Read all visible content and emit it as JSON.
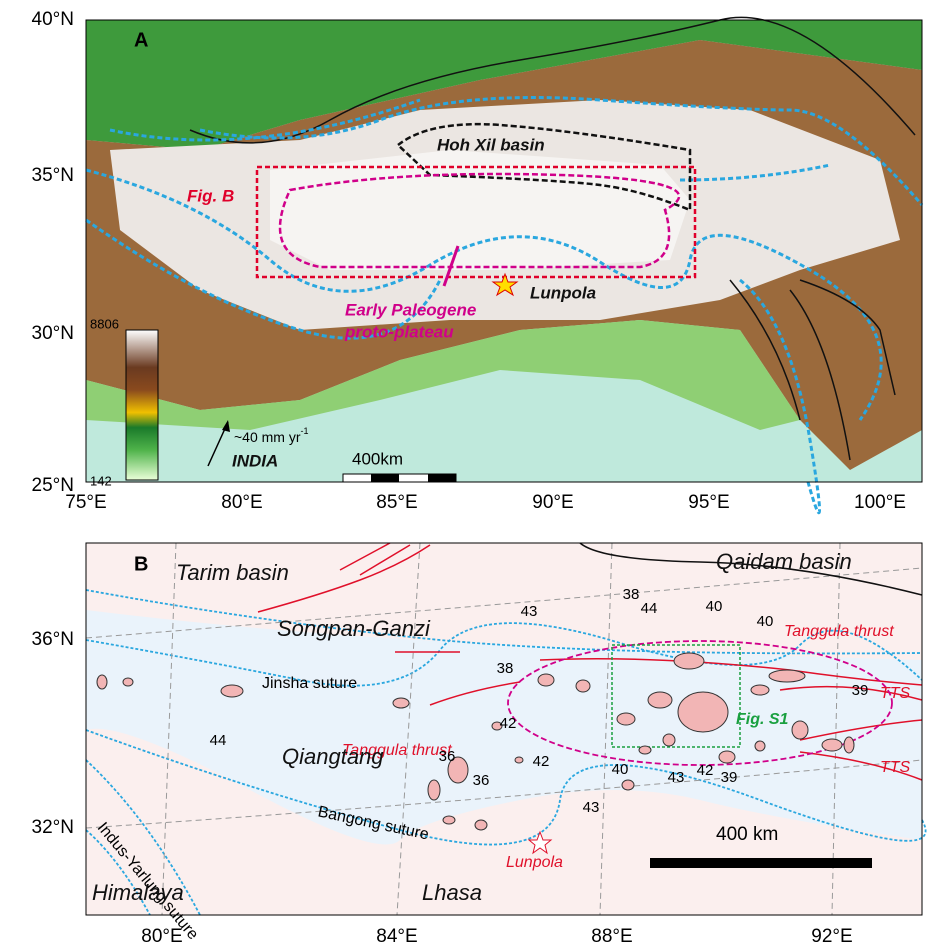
{
  "panel_a": {
    "label": "A",
    "lat_ticks": [
      "40°N",
      "35°N",
      "30°N",
      "25°N"
    ],
    "lon_ticks": [
      "75°E",
      "80°E",
      "85°E",
      "90°E",
      "95°E",
      "100°E"
    ],
    "hoh_xil": "Hoh Xil basin",
    "fig_b": "Fig. B",
    "proto_plateau": [
      "Early Paleogene",
      "proto-plateau"
    ],
    "lunpola": "Lunpola",
    "elevation_max": "8806",
    "elevation_min": "142",
    "velocity": "~40 mm yr",
    "velocity_exp": "-1",
    "india": "INDIA",
    "scale": "400km"
  },
  "panel_b": {
    "label": "B",
    "lat_ticks": [
      "36°N",
      "32°N"
    ],
    "lon_ticks": [
      "80°E",
      "84°E",
      "88°E",
      "92°E"
    ],
    "tarim": "Tarim basin",
    "qaidam": "Qaidam basin",
    "songpan": "Songpan-Ganzi",
    "tanggula": [
      "Tanggula thrust",
      "Tanggula thrust"
    ],
    "tts": [
      "TTS",
      "TTS"
    ],
    "jinsha": "Jinsha suture",
    "fig_s1": "Fig. S1",
    "qiangtang": "Qiangtang",
    "indus": "Indus-Yarlung suture",
    "bangong": "Bangong suture",
    "lunpola": "Lunpola",
    "himalaya": "Himalaya",
    "lhasa": "Lhasa",
    "scale": "400 km",
    "ages": [
      "44",
      "38",
      "43",
      "40",
      "40",
      "38",
      "42",
      "44",
      "39",
      "36",
      "36",
      "42",
      "43",
      "40",
      "43",
      "42",
      "39"
    ]
  }
}
